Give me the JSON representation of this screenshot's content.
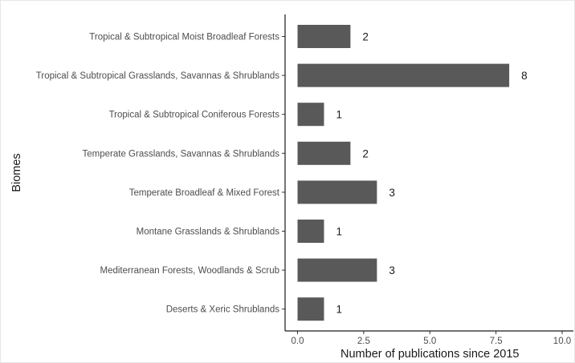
{
  "chart_data": {
    "type": "bar",
    "orientation": "horizontal",
    "title": "",
    "xlabel": "Number of publications since 2015",
    "ylabel": "Biomes",
    "categories": [
      "Tropical & Subtropical Moist Broadleaf Forests",
      "Tropical & Subtropical Grasslands, Savannas & Shrublands",
      "Tropical & Subtropical Coniferous Forests",
      "Temperate Grasslands, Savannas & Shrublands",
      "Temperate Broadleaf & Mixed Forest",
      "Montane Grasslands & Shrublands",
      "Mediterranean Forests, Woodlands & Scrub",
      "Deserts & Xeric Shrublands"
    ],
    "values": [
      2,
      8,
      1,
      2,
      3,
      1,
      3,
      1
    ],
    "data_labels": [
      "2",
      "8",
      "1",
      "2",
      "3",
      "1",
      "3",
      "1"
    ],
    "xlim": [
      0,
      10
    ],
    "xticks": [
      0,
      2.5,
      5,
      7.5,
      10
    ],
    "xtick_labels": [
      "0.0",
      "2.5",
      "5.0",
      "7.5",
      "10.0"
    ],
    "grid": false,
    "bar_color": "#595959"
  }
}
